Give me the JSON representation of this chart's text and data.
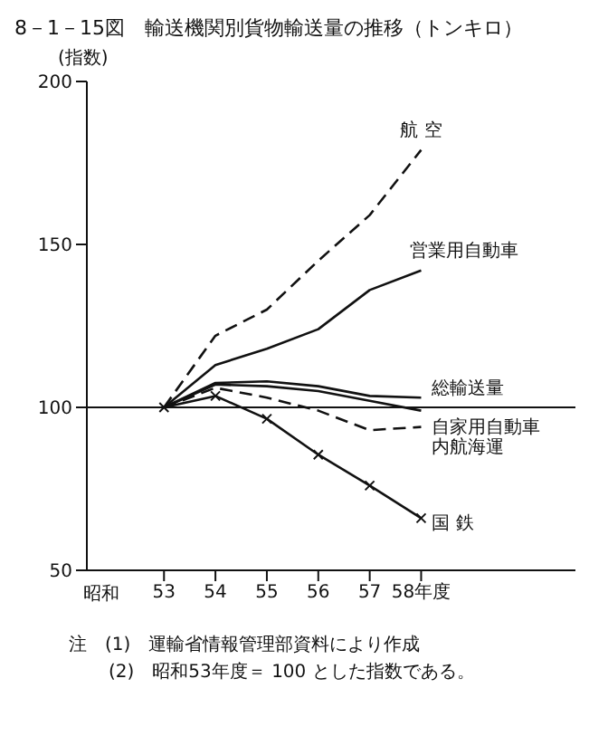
{
  "chart_data": {
    "type": "line",
    "title": "8－1－15図　輸送機関別貨物輸送量の推移（トンキロ）",
    "ylabel": "(指数)",
    "xlabel": "昭和",
    "x": [
      53,
      54,
      55,
      56,
      57,
      58
    ],
    "series": [
      {
        "name": "航 空",
        "color": "#111111",
        "values": [
          100,
          122,
          130,
          145,
          159,
          179
        ],
        "line_style": "dashed",
        "marker": "none"
      },
      {
        "name": "営業用自動車",
        "color": "#111111",
        "values": [
          100,
          113,
          118,
          124,
          136,
          142
        ],
        "line_style": "solid",
        "marker": "none"
      },
      {
        "name": "総輸送量",
        "color": "#111111",
        "values": [
          100,
          107.5,
          108,
          106.5,
          103.5,
          103
        ],
        "line_style": "solid",
        "marker": "none"
      },
      {
        "name": "自家用自動車",
        "color": "#111111",
        "values": [
          100,
          107,
          106.5,
          105,
          102,
          99
        ],
        "line_style": "solid",
        "marker": "none"
      },
      {
        "name": "内航海運",
        "color": "#111111",
        "values": [
          100,
          106,
          103,
          99,
          93,
          94
        ],
        "line_style": "dashed",
        "marker": "none"
      },
      {
        "name": "国 鉄",
        "color": "#111111",
        "values": [
          100,
          103.5,
          96.5,
          85.5,
          76,
          66
        ],
        "line_style": "solid",
        "marker": "cross"
      }
    ],
    "xlim": [
      51.5,
      61
    ],
    "xticks": [
      53,
      54,
      55,
      56,
      57,
      {
        "value": 58,
        "label": "58年度"
      }
    ],
    "ylim": [
      50,
      200
    ],
    "yticks": [
      50,
      100,
      150,
      200
    ],
    "ref_lines": [
      {
        "axis": "y",
        "value": 100,
        "color": "#111111"
      }
    ],
    "grid": false,
    "legend": false,
    "annotations": [
      "注　(1)　運輸省情報管理部資料により作成",
      "(2)　昭和53年度＝ 100 とした指数である。"
    ]
  }
}
